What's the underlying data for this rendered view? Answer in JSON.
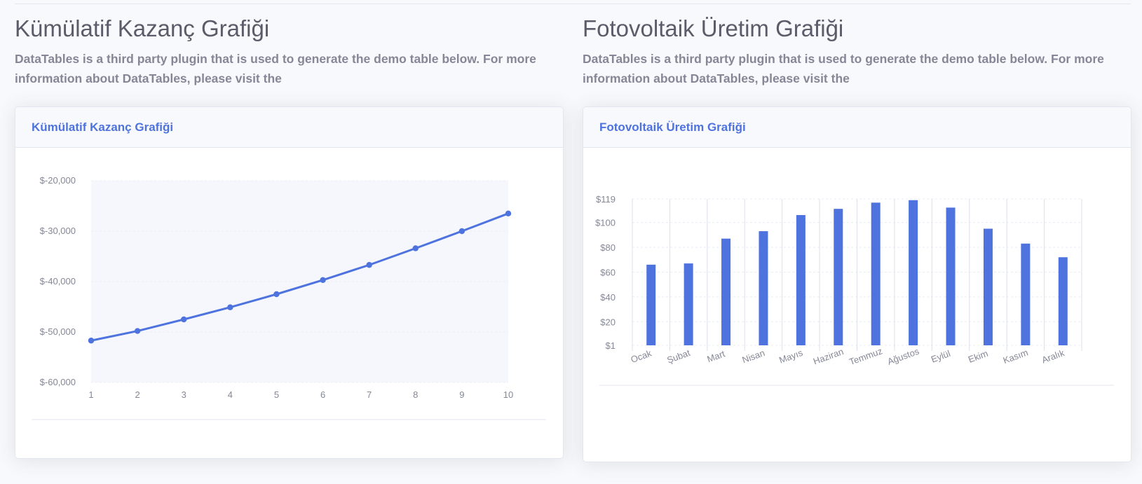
{
  "left": {
    "page_title": "Kümülatif Kazanç Grafiği",
    "description": "DataTables is a third party plugin that is used to generate the demo table below. For more information about DataTables, please visit the",
    "card_title": "Kümülatif Kazanç Grafiği"
  },
  "right": {
    "page_title": "Fotovoltaik Üretim Grafiği",
    "description": "DataTables is a third party plugin that is used to generate the demo table below. For more information about DataTables, please visit the",
    "card_title": "Fotovoltaik Üretim Grafiği"
  },
  "colors": {
    "accent": "#4e73df",
    "fill": "#f5f7fd",
    "grid": "#eaecf4",
    "text": "#858796"
  },
  "chart_data": [
    {
      "type": "area",
      "title": "Kümülatif Kazanç Grafiği",
      "x": [
        1,
        2,
        3,
        4,
        5,
        6,
        7,
        8,
        9,
        10
      ],
      "series": [
        {
          "values": [
            -51700,
            -49800,
            -47500,
            -45100,
            -42500,
            -39700,
            -36700,
            -33400,
            -30000,
            -26500
          ]
        }
      ],
      "xlabel": "",
      "ylabel": "",
      "ylim": [
        -60000,
        -20000
      ],
      "yticks": [
        "$-20,000",
        "$-30,000",
        "$-40,000",
        "$-50,000",
        "$-60,000"
      ],
      "xticks": [
        "1",
        "2",
        "3",
        "4",
        "5",
        "6",
        "7",
        "8",
        "9",
        "10"
      ],
      "grid": true
    },
    {
      "type": "bar",
      "title": "Fotovoltaik Üretim Grafiği",
      "categories": [
        "Ocak",
        "Şubat",
        "Mart",
        "Nisan",
        "Mayıs",
        "Haziran",
        "Temmuz",
        "Ağustos",
        "Eylül",
        "Ekim",
        "Kasım",
        "Aralık"
      ],
      "values": [
        66,
        67,
        87,
        93,
        106,
        111,
        116,
        118,
        112,
        95,
        83,
        72
      ],
      "xlabel": "",
      "ylabel": "",
      "ylim": [
        1,
        119
      ],
      "yticks": [
        "$119",
        "$100",
        "$80",
        "$60",
        "$40",
        "$20",
        "$1"
      ],
      "grid": true
    }
  ]
}
